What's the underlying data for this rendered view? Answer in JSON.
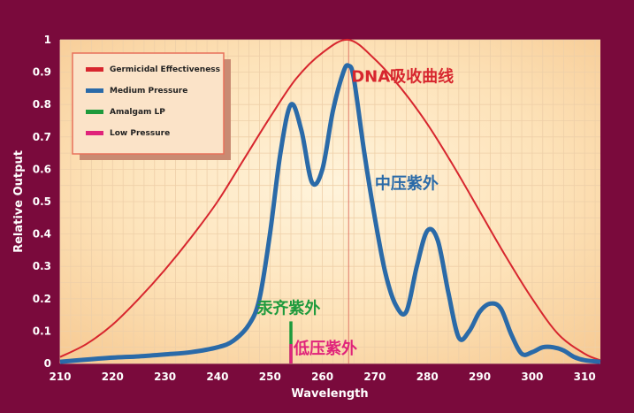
{
  "chart_data": {
    "type": "line",
    "title": "",
    "xlabel": "Wavelength",
    "ylabel": "Relative Output",
    "xlim": [
      210,
      313
    ],
    "ylim": [
      0,
      1
    ],
    "x_ticks": [
      210,
      220,
      230,
      240,
      250,
      260,
      270,
      280,
      290,
      300,
      310
    ],
    "y_ticks": [
      0,
      0.1,
      0.2,
      0.3,
      0.4,
      0.5,
      0.6,
      0.7,
      0.8,
      0.9,
      1
    ],
    "y_tick_labels": [
      "0",
      "0.1",
      "0.2",
      "0.3",
      "0.4",
      "0.5",
      "0.6",
      "0.7",
      "0.8",
      "0.9",
      "1"
    ],
    "grid": true,
    "legend_position": "top-left",
    "legend": [
      {
        "label": "Germicidal Effectiveness",
        "color": "#d7262e"
      },
      {
        "label": "Medium Pressure",
        "color": "#2a6aa8"
      },
      {
        "label": "Amalgam LP",
        "color": "#1e9a3c"
      },
      {
        "label": "Low Pressure",
        "color": "#e0237a"
      }
    ],
    "series": [
      {
        "name": "Germicidal Effectiveness",
        "color": "#d7262e",
        "x": [
          210,
          215,
          220,
          225,
          230,
          235,
          240,
          245,
          250,
          255,
          260,
          265,
          270,
          275,
          280,
          285,
          290,
          295,
          300,
          305,
          310,
          313
        ],
        "y": [
          0.02,
          0.06,
          0.12,
          0.2,
          0.29,
          0.39,
          0.5,
          0.63,
          0.76,
          0.88,
          0.96,
          1.0,
          0.94,
          0.85,
          0.74,
          0.61,
          0.47,
          0.33,
          0.2,
          0.09,
          0.03,
          0.01
        ]
      },
      {
        "name": "Medium Pressure",
        "color": "#2a6aa8",
        "x": [
          210,
          215,
          220,
          225,
          230,
          235,
          240,
          243,
          246,
          248,
          250,
          252,
          254,
          256,
          258,
          260,
          262,
          264,
          265,
          266,
          268,
          270,
          272,
          274,
          276,
          278,
          280,
          282,
          284,
          286,
          288,
          290,
          292,
          294,
          296,
          298,
          300,
          302,
          304,
          306,
          308,
          310,
          313
        ],
        "y": [
          0.005,
          0.012,
          0.018,
          0.022,
          0.028,
          0.035,
          0.05,
          0.07,
          0.12,
          0.2,
          0.4,
          0.65,
          0.8,
          0.72,
          0.56,
          0.6,
          0.78,
          0.9,
          0.92,
          0.88,
          0.65,
          0.45,
          0.28,
          0.18,
          0.16,
          0.3,
          0.41,
          0.38,
          0.22,
          0.08,
          0.1,
          0.16,
          0.185,
          0.17,
          0.09,
          0.03,
          0.035,
          0.05,
          0.05,
          0.04,
          0.02,
          0.01,
          0.005
        ]
      },
      {
        "name": "Amalgam LP",
        "color": "#1e9a3c",
        "type": "spike",
        "x": 254,
        "y": 0.13
      },
      {
        "name": "Low Pressure",
        "color": "#e0237a",
        "type": "spike",
        "x": 254,
        "y": 0.06
      }
    ],
    "reference_line_x": 265,
    "annotations": [
      {
        "text": "DNA吸收曲线",
        "color": "#d7262e",
        "x": 265.5,
        "y": 0.87
      },
      {
        "text": "中压紫外",
        "color": "#2a6aa8",
        "x": 270,
        "y": 0.54
      },
      {
        "text": "汞齐紫外",
        "color": "#1e9a3c",
        "x": 247.5,
        "y": 0.155
      },
      {
        "text": "低压紫外",
        "color": "#e0237a",
        "x": 254.5,
        "y": 0.03
      }
    ]
  }
}
